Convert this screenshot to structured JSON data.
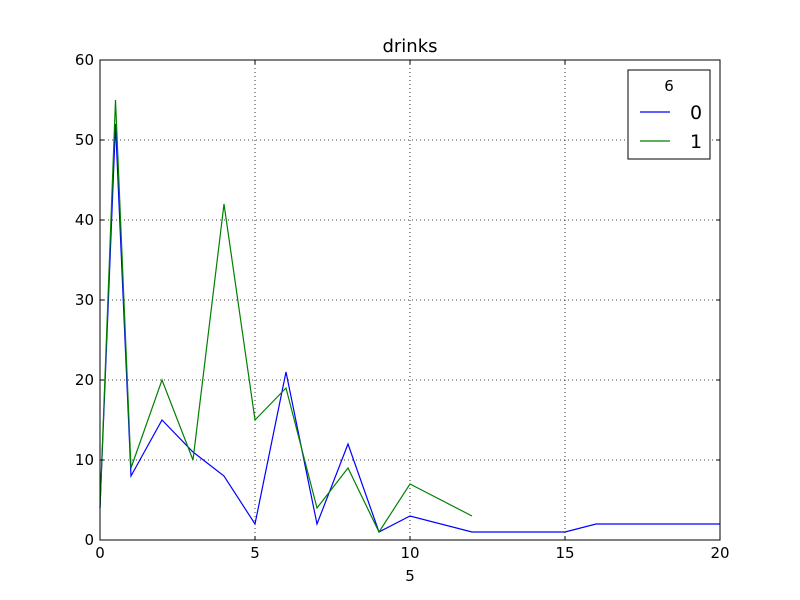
{
  "chart_data": {
    "type": "line",
    "title": "drinks",
    "xlabel": "5",
    "ylabel": "",
    "xlim": [
      0,
      20
    ],
    "ylim": [
      0,
      60
    ],
    "xticks": [
      0,
      5,
      10,
      15,
      20
    ],
    "yticks": [
      0,
      10,
      20,
      30,
      40,
      50,
      60
    ],
    "grid": true,
    "legend": {
      "title": "6",
      "placement": "top-right"
    },
    "series": [
      {
        "name": "0",
        "color": "#0000ff",
        "points": [
          [
            0,
            4
          ],
          [
            0.5,
            52
          ],
          [
            1,
            8
          ],
          [
            2,
            15
          ],
          [
            3,
            11
          ],
          [
            4,
            8
          ],
          [
            5,
            2
          ],
          [
            6,
            21
          ],
          [
            7,
            2
          ],
          [
            8,
            12
          ],
          [
            9,
            1
          ],
          [
            10,
            3
          ],
          [
            12,
            1
          ],
          [
            15,
            1
          ],
          [
            16,
            2
          ],
          [
            20,
            2
          ]
        ]
      },
      {
        "name": "1",
        "color": "#008000",
        "points": [
          [
            0,
            4
          ],
          [
            0.5,
            55
          ],
          [
            1,
            9
          ],
          [
            2,
            20
          ],
          [
            3,
            10
          ],
          [
            4,
            42
          ],
          [
            5,
            15
          ],
          [
            6,
            19
          ],
          [
            7,
            4
          ],
          [
            8,
            9
          ],
          [
            9,
            1
          ],
          [
            10,
            7
          ],
          [
            12,
            3
          ]
        ]
      }
    ]
  }
}
